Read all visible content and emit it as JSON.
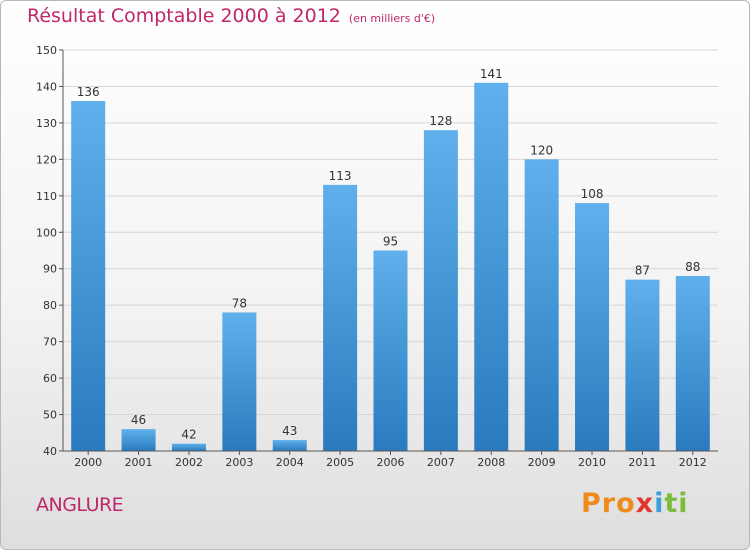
{
  "header": {
    "title": "Résultat Comptable 2000 à 2012",
    "unit": "(en milliers d'€)"
  },
  "footer": {
    "city": "ANGLURE",
    "logo": [
      "Pro",
      "x",
      "i",
      "ti"
    ]
  },
  "colors": {
    "bar_light": "#5fb0ec",
    "bar_dark": "#2a7bbe",
    "title": "#c0266a"
  },
  "chart_data": {
    "type": "bar",
    "title": "Résultat Comptable 2000 à 2012",
    "subtitle": "(en milliers d'€)",
    "xlabel": "",
    "ylabel": "",
    "categories": [
      "2000",
      "2001",
      "2002",
      "2003",
      "2004",
      "2005",
      "2006",
      "2007",
      "2008",
      "2009",
      "2010",
      "2011",
      "2012"
    ],
    "values": [
      136,
      46,
      42,
      78,
      43,
      113,
      95,
      128,
      141,
      120,
      108,
      87,
      88
    ],
    "ylim": [
      40,
      150
    ],
    "yticks": [
      40,
      50,
      60,
      70,
      80,
      90,
      100,
      110,
      120,
      130,
      140,
      150
    ],
    "grid": true
  }
}
